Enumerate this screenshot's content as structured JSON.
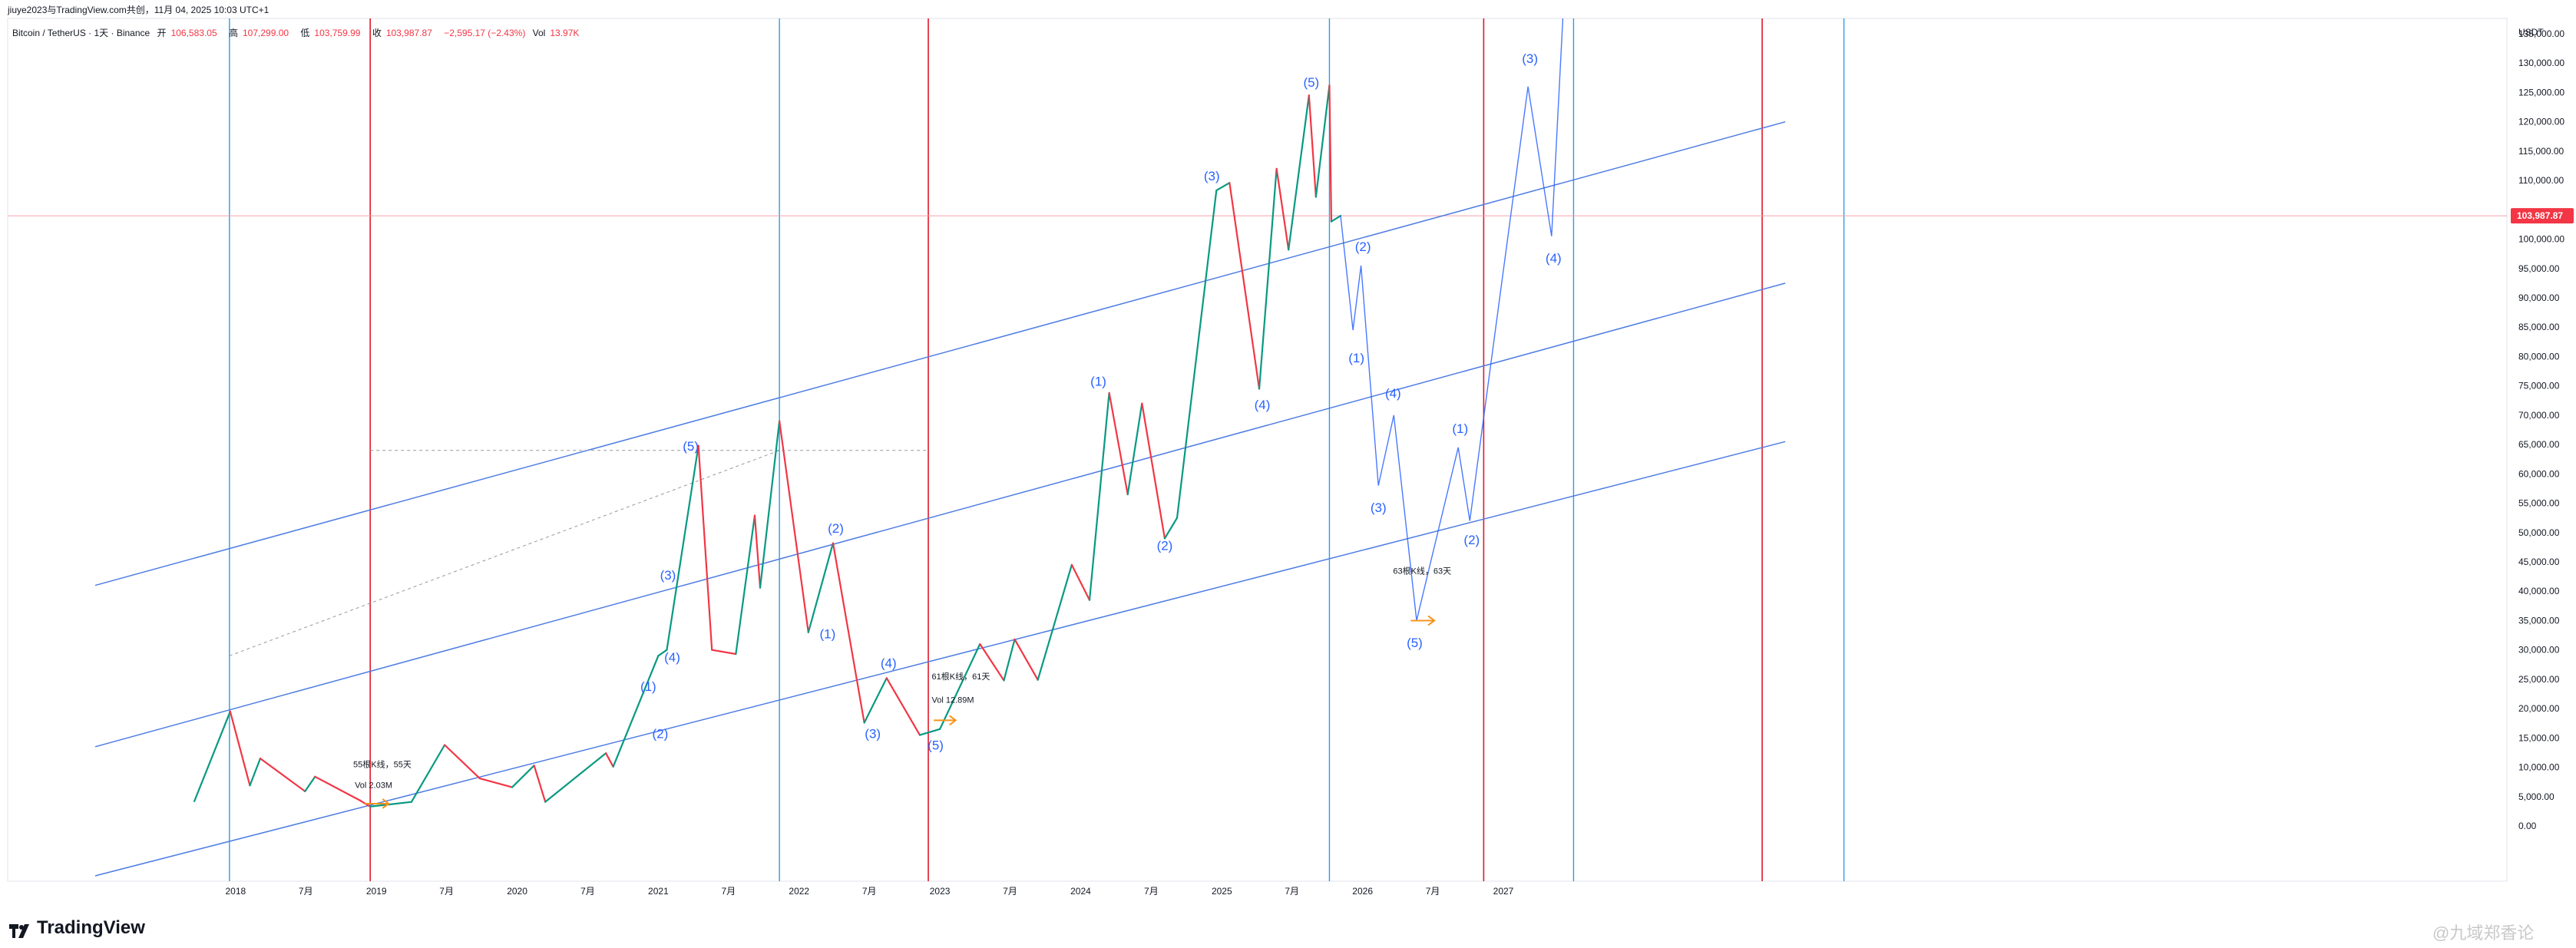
{
  "header": {
    "text": "jiuye2023与TradingView.com共创，11月 04, 2025 10:03 UTC+1"
  },
  "symbol_line": {
    "name": "Bitcoin / TetherUS · 1天 · Binance",
    "open_label": "开",
    "open": "106,583.05",
    "high_label": "高",
    "high": "107,299.00",
    "low_label": "低",
    "low": "103,759.99",
    "close_label": "收",
    "close": "103,987.87",
    "change": "−2,595.17 (−2.43%)",
    "vol_label": "Vol",
    "vol": "13.97K"
  },
  "brand": {
    "name": "TradingView"
  },
  "watermark": {
    "text": "@九域郑香论"
  },
  "colors": {
    "up": "#089981",
    "down": "#f23645",
    "wave": "#2962ff",
    "channel": "#4f7de3",
    "cycle_blue": "#2e9be6",
    "cycle_red": "#e0182b",
    "price_line": "#f7a1a9",
    "arrow": "#f7931a"
  },
  "chart_data": {
    "type": "line",
    "price_axis": {
      "unit": "USDT",
      "ticks": [
        "135,000.00",
        "130,000.00",
        "125,000.00",
        "120,000.00",
        "115,000.00",
        "110,000.00",
        "100,000.00",
        "95,000.00",
        "90,000.00",
        "85,000.00",
        "80,000.00",
        "75,000.00",
        "70,000.00",
        "65,000.00",
        "60,000.00",
        "55,000.00",
        "50,000.00",
        "45,000.00",
        "40,000.00",
        "35,000.00",
        "30,000.00",
        "25,000.00",
        "20,000.00",
        "15,000.00",
        "10,000.00",
        "5,000.00",
        "0.00"
      ],
      "current_price_label": "103,987.87",
      "current_price": 103987.87
    },
    "time_axis": {
      "ticks": [
        "2018",
        "7月",
        "2019",
        "7月",
        "2020",
        "7月",
        "2021",
        "7月",
        "2022",
        "7月",
        "2023",
        "7月",
        "2024",
        "7月",
        "2025",
        "7月",
        "2026",
        "7月",
        "2027"
      ]
    },
    "btc_path": [
      [
        "2017-09-15",
        4200
      ],
      [
        "2017-12-17",
        19500
      ],
      [
        "2018-02-06",
        6900
      ],
      [
        "2018-03-05",
        11500
      ],
      [
        "2018-06-29",
        5900
      ],
      [
        "2018-07-25",
        8400
      ],
      [
        "2018-11-20",
        4300
      ],
      [
        "2018-12-15",
        3300
      ],
      [
        "2019-04-01",
        4100
      ],
      [
        "2019-06-26",
        13800
      ],
      [
        "2019-09-25",
        8100
      ],
      [
        "2019-12-18",
        6600
      ],
      [
        "2020-02-13",
        10300
      ],
      [
        "2020-03-13",
        4100
      ],
      [
        "2020-08-17",
        12400
      ],
      [
        "2020-09-05",
        10100
      ],
      [
        "2020-12-31",
        29000
      ],
      [
        "2021-01-22",
        30000
      ],
      [
        "2021-04-14",
        64800
      ],
      [
        "2021-05-19",
        30000
      ],
      [
        "2021-07-20",
        29300
      ],
      [
        "2021-09-07",
        52900
      ],
      [
        "2021-09-21",
        40600
      ],
      [
        "2021-11-10",
        69000
      ],
      [
        "2022-01-24",
        33000
      ],
      [
        "2022-03-29",
        48200
      ],
      [
        "2022-06-18",
        17600
      ],
      [
        "2022-08-15",
        25200
      ],
      [
        "2022-11-09",
        15500
      ],
      [
        "2022-12-31",
        16500
      ],
      [
        "2023-04-14",
        31000
      ],
      [
        "2023-06-15",
        24800
      ],
      [
        "2023-07-13",
        31800
      ],
      [
        "2023-09-11",
        24900
      ],
      [
        "2023-12-08",
        44500
      ],
      [
        "2024-01-23",
        38500
      ],
      [
        "2024-03-14",
        73800
      ],
      [
        "2024-05-01",
        56500
      ],
      [
        "2024-06-07",
        72000
      ],
      [
        "2024-08-05",
        49000
      ],
      [
        "2024-09-06",
        52500
      ],
      [
        "2024-12-17",
        108300
      ],
      [
        "2025-01-20",
        109600
      ],
      [
        "2025-04-07",
        74500
      ],
      [
        "2025-05-22",
        112000
      ],
      [
        "2025-06-22",
        98200
      ],
      [
        "2025-08-14",
        124500
      ],
      [
        "2025-09-01",
        107200
      ],
      [
        "2025-10-06",
        126200
      ],
      [
        "2025-10-11",
        103000
      ],
      [
        "2025-11-04",
        103987.87
      ]
    ],
    "projection_path": [
      [
        "2025-11-04",
        103987.87
      ],
      [
        "2025-12-06",
        84500
      ],
      [
        "2025-12-27",
        95500
      ],
      [
        "2026-02-10",
        58000
      ],
      [
        "2026-03-22",
        70000
      ],
      [
        "2026-05-20",
        35000
      ],
      [
        "2026-09-05",
        64500
      ],
      [
        "2026-10-05",
        52000
      ],
      [
        "2027-03-05",
        126000
      ],
      [
        "2027-05-05",
        100500
      ],
      [
        "2027-06-05",
        140000
      ]
    ],
    "wave_labels": [
      {
        "label": "(1)",
        "date": "2020-12-05",
        "price": 23000
      },
      {
        "label": "(2)",
        "date": "2021-01-05",
        "price": 15000
      },
      {
        "label": "(3)",
        "date": "2021-01-25",
        "price": 42000
      },
      {
        "label": "(4)",
        "date": "2021-02-05",
        "price": 28000
      },
      {
        "label": "(5)",
        "date": "2021-03-25",
        "price": 64000
      },
      {
        "label": "(1)",
        "date": "2022-03-15",
        "price": 32000
      },
      {
        "label": "(2)",
        "date": "2022-04-05",
        "price": 50000
      },
      {
        "label": "(3)",
        "date": "2022-07-10",
        "price": 15000
      },
      {
        "label": "(4)",
        "date": "2022-08-20",
        "price": 27000
      },
      {
        "label": "(5)",
        "date": "2022-12-20",
        "price": 13000
      },
      {
        "label": "(1)",
        "date": "2024-02-15",
        "price": 75000
      },
      {
        "label": "(2)",
        "date": "2024-08-05",
        "price": 47000
      },
      {
        "label": "(3)",
        "date": "2024-12-05",
        "price": 110000
      },
      {
        "label": "(4)",
        "date": "2025-04-15",
        "price": 71000
      },
      {
        "label": "(5)",
        "date": "2025-08-20",
        "price": 126000
      },
      {
        "label": "(1)",
        "date": "2025-12-15",
        "price": 79000
      },
      {
        "label": "(2)",
        "date": "2026-01-01",
        "price": 98000
      },
      {
        "label": "(3)",
        "date": "2026-02-10",
        "price": 53500
      },
      {
        "label": "(4)",
        "date": "2026-03-20",
        "price": 73000
      },
      {
        "label": "(5)",
        "date": "2026-05-15",
        "price": 30500
      },
      {
        "label": "(1)",
        "date": "2026-09-10",
        "price": 67000
      },
      {
        "label": "(2)",
        "date": "2026-10-10",
        "price": 48000
      },
      {
        "label": "(3)",
        "date": "2027-03-10",
        "price": 130000
      },
      {
        "label": "(4)",
        "date": "2027-05-10",
        "price": 96000
      }
    ],
    "channel_lines": [
      {
        "from": [
          "2017-01-01",
          41000
        ],
        "to": [
          "2028-12-31",
          120000
        ]
      },
      {
        "from": [
          "2017-01-01",
          13500
        ],
        "to": [
          "2028-12-31",
          92500
        ]
      },
      {
        "from": [
          "2017-01-01",
          -8500
        ],
        "to": [
          "2028-12-31",
          65500
        ]
      }
    ],
    "cycle_lines_blue": [
      "2017-12-15",
      "2021-11-10",
      "2025-10-06",
      "2027-07-01",
      "2029-06-01"
    ],
    "cycle_lines_red": [
      "2018-12-15",
      "2022-12-01",
      "2026-11-10",
      "2028-11-01"
    ],
    "dotted_lines": [
      {
        "from": [
          "2018-12-15",
          64000
        ],
        "to": [
          "2022-12-01",
          64000
        ]
      },
      {
        "from": [
          "2017-12-15",
          29000
        ],
        "to": [
          "2021-11-10",
          64000
        ]
      }
    ],
    "annotations": [
      {
        "text": "55根K线，55天",
        "date": "2018-11-01",
        "price": 10000
      },
      {
        "text": "Vol 2.03M",
        "date": "2018-11-05",
        "price": 6500
      },
      {
        "text": "61根K线，61天",
        "date": "2022-12-10",
        "price": 25000
      },
      {
        "text": "Vol 12.89M",
        "date": "2022-12-10",
        "price": 21000
      },
      {
        "text": "63根K线，63天",
        "date": "2026-03-20",
        "price": 43000
      }
    ],
    "range_arrows": [
      {
        "from": [
          "2018-12-01",
          3800
        ],
        "to": [
          "2019-02-01",
          3800
        ]
      },
      {
        "from": [
          "2022-12-15",
          18000
        ],
        "to": [
          "2023-02-10",
          18000
        ]
      },
      {
        "from": [
          "2026-05-05",
          35000
        ],
        "to": [
          "2026-07-05",
          35000
        ]
      }
    ]
  }
}
